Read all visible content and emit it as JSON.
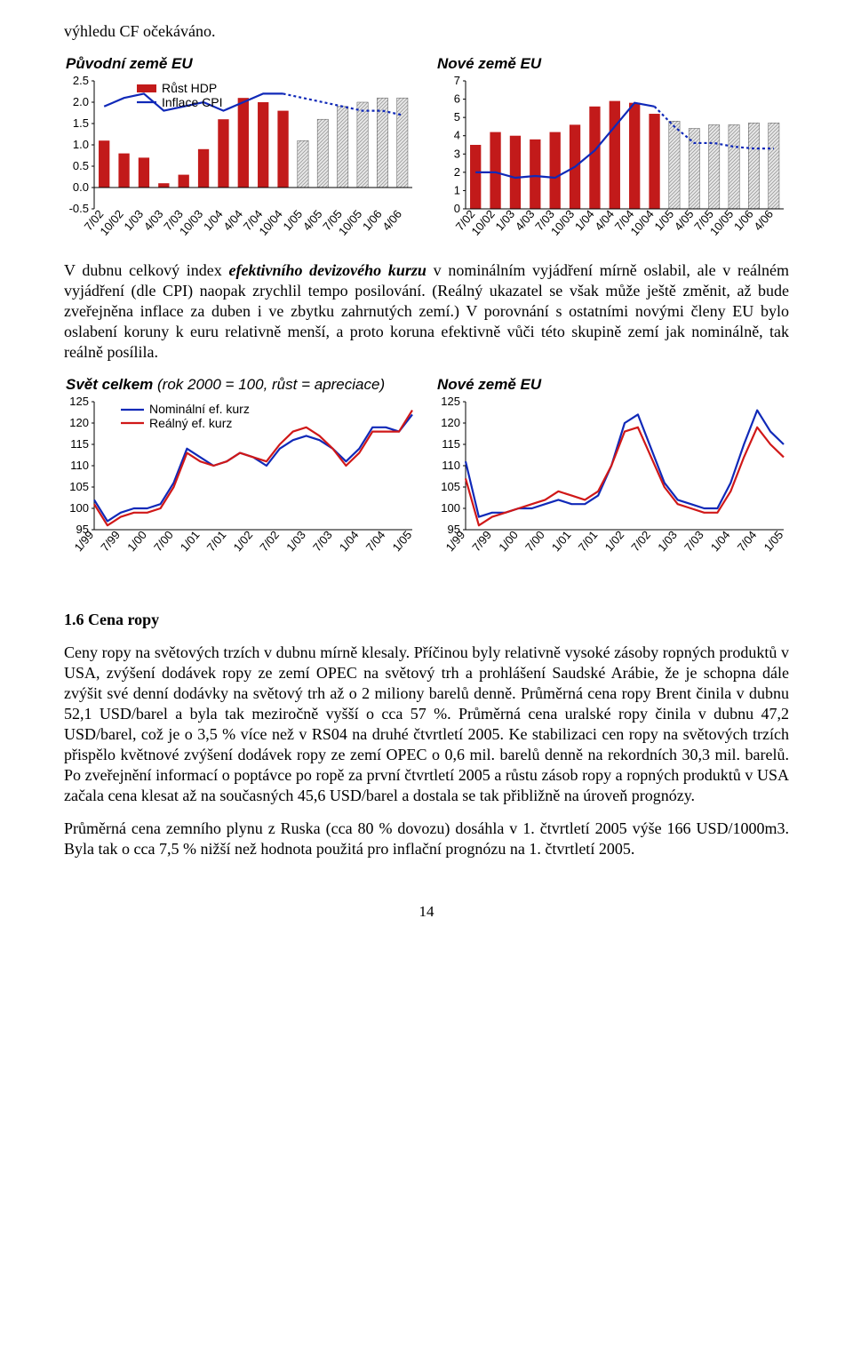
{
  "intro_text": "výhledu CF očekáváno.",
  "chartA": {
    "type": "bar+line",
    "title": "Původní země EU",
    "legend": {
      "bar": "Růst HDP",
      "line": "Inflace CPI"
    },
    "categories": [
      "7/02",
      "10/02",
      "1/03",
      "4/03",
      "7/03",
      "10/03",
      "1/04",
      "4/04",
      "7/04",
      "10/04",
      "1/05",
      "4/05",
      "7/05",
      "10/05",
      "1/06",
      "4/06"
    ],
    "bar_values": [
      1.1,
      0.8,
      0.7,
      0.1,
      0.3,
      0.9,
      1.6,
      2.1,
      2.0,
      1.8,
      1.1,
      1.6,
      1.9,
      2.0,
      2.1,
      2.1
    ],
    "bar_forecast_from_index": 10,
    "line_values": [
      1.9,
      2.1,
      2.2,
      1.8,
      1.9,
      2.0,
      1.8,
      2.0,
      2.2,
      2.2,
      2.1,
      2.0,
      1.9,
      1.8,
      1.8,
      1.7
    ],
    "line_forecast_from_index": 10,
    "ylim": [
      -0.5,
      2.5
    ],
    "ytick_step": 0.5,
    "colors": {
      "bar": "#c21a1a",
      "bar_forecast_fill": "#e8e8e8",
      "bar_forecast_pattern": "#9a9a9a",
      "line": "#1029b8",
      "line_forecast": "#1029b8",
      "axis": "#000000",
      "tick_label": "#000000"
    },
    "fontsize": {
      "axis": 12,
      "tick": 13,
      "legend": 14
    },
    "bar_width": 0.55,
    "line_width": 2.2
  },
  "chartB": {
    "type": "bar+line",
    "title": "Nové země EU",
    "categories": [
      "7/02",
      "10/02",
      "1/03",
      "4/03",
      "7/03",
      "10/03",
      "1/04",
      "4/04",
      "7/04",
      "10/04",
      "1/05",
      "4/05",
      "7/05",
      "10/05",
      "1/06",
      "4/06"
    ],
    "bar_values": [
      3.5,
      4.2,
      4.0,
      3.8,
      4.2,
      4.6,
      5.6,
      5.9,
      5.8,
      5.2,
      4.8,
      4.4,
      4.6,
      4.6,
      4.7,
      4.7
    ],
    "bar_forecast_from_index": 10,
    "line_values": [
      2.0,
      2.0,
      1.7,
      1.8,
      1.7,
      2.3,
      3.2,
      4.5,
      5.8,
      5.6,
      4.5,
      3.6,
      3.6,
      3.4,
      3.3,
      3.3
    ],
    "line_forecast_from_index": 10,
    "ylim": [
      0,
      7
    ],
    "ytick_step": 1,
    "colors": {
      "bar": "#c21a1a",
      "bar_forecast_fill": "#e8e8e8",
      "bar_forecast_pattern": "#9a9a9a",
      "line": "#1029b8",
      "line_forecast": "#1029b8",
      "axis": "#000000"
    },
    "fontsize": {
      "tick": 13
    },
    "bar_width": 0.55,
    "line_width": 2.2
  },
  "para1_parts": {
    "a": "V dubnu celkový index ",
    "b_bi": "efektivního devizového kurzu",
    "c": " v nominálním vyjádření mírně oslabil, ale v reálném vyjádření (dle CPI) naopak zrychlil tempo posilování. (Reálný ukazatel se však může ještě změnit, až bude zveřejněna inflace za duben i ve zbytku zahrnutých zemí.) V porovnání s ostatními novými členy EU bylo oslabení koruny k euru relativně menší, a proto koruna efektivně vůči této skupině zemí jak nominálně, tak reálně posílila."
  },
  "chartC": {
    "type": "line2",
    "supertitle_bold": "Svět celkem",
    "supertitle_rest": " (rok 2000 = 100, růst = apreciace)",
    "legend": {
      "s1": "Nominální ef. kurz",
      "s2": "Reálný ef. kurz"
    },
    "categories": [
      "1/99",
      "7/99",
      "1/00",
      "7/00",
      "1/01",
      "7/01",
      "1/02",
      "7/02",
      "1/03",
      "7/03",
      "1/04",
      "7/04",
      "1/05"
    ],
    "s1": [
      102,
      97,
      99,
      100,
      100,
      101,
      106,
      114,
      112,
      110,
      111,
      113,
      112,
      110,
      114,
      116,
      117,
      116,
      114,
      111,
      114,
      119,
      119,
      118,
      122
    ],
    "s2": [
      101,
      96,
      98,
      99,
      99,
      100,
      105,
      113,
      111,
      110,
      111,
      113,
      112,
      111,
      115,
      118,
      119,
      117,
      114,
      110,
      113,
      118,
      118,
      118,
      123
    ],
    "points_per_tick": 2,
    "ylim": [
      95,
      125
    ],
    "ytick_step": 5,
    "colors": {
      "s1": "#1029b8",
      "s2": "#d01818",
      "axis": "#000000"
    },
    "line_width": 2.2,
    "fontsize": {
      "tick": 13,
      "legend": 14
    }
  },
  "chartD": {
    "type": "line2",
    "title": "Nové země EU",
    "categories": [
      "1/99",
      "7/99",
      "1/00",
      "7/00",
      "1/01",
      "7/01",
      "1/02",
      "7/02",
      "1/03",
      "7/03",
      "1/04",
      "7/04",
      "1/05"
    ],
    "s1": [
      111,
      98,
      99,
      99,
      100,
      100,
      101,
      102,
      101,
      101,
      103,
      110,
      120,
      122,
      114,
      106,
      102,
      101,
      100,
      100,
      106,
      115,
      123,
      118,
      115
    ],
    "s2": [
      107,
      96,
      98,
      99,
      100,
      101,
      102,
      104,
      103,
      102,
      104,
      110,
      118,
      119,
      112,
      105,
      101,
      100,
      99,
      99,
      104,
      112,
      119,
      115,
      112
    ],
    "points_per_tick": 2,
    "ylim": [
      95,
      125
    ],
    "ytick_step": 5,
    "colors": {
      "s1": "#1029b8",
      "s2": "#d01818",
      "axis": "#000000"
    },
    "line_width": 2.2,
    "fontsize": {
      "tick": 13
    }
  },
  "section_heading": "1.6  Cena ropy",
  "para2": "Ceny ropy na světových trzích v dubnu mírně klesaly. Příčinou byly relativně vysoké zásoby ropných produktů v USA, zvýšení dodávek ropy ze zemí OPEC na světový trh a prohlášení Saudské Arábie, že je schopna dále zvýšit své denní dodávky na světový trh až o 2 miliony barelů denně. Průměrná cena ropy Brent činila v dubnu 52,1 USD/barel a byla tak meziročně vyšší o cca 57 %. Průměrná cena uralské ropy činila v dubnu 47,2 USD/barel, což je o 3,5 % více než v RS04 na druhé čtvrtletí 2005. Ke stabilizaci cen ropy na světových trzích přispělo květnové zvýšení dodávek ropy ze zemí OPEC o 0,6 mil. barelů denně na rekordních 30,3 mil. barelů. Po zveřejnění informací o poptávce po ropě za první čtvrtletí 2005 a růstu zásob ropy a ropných produktů v USA začala cena klesat až na současných 45,6 USD/barel a dostala se tak přibližně na úroveň prognózy.",
  "para3": "Průměrná cena zemního plynu z Ruska (cca 80 % dovozu) dosáhla v 1. čtvrtletí 2005 výše 166 USD/1000m3. Byla tak o cca 7,5 % nižší než hodnota použitá pro inflační prognózu na 1. čtvrtletí 2005.",
  "page_number": "14"
}
